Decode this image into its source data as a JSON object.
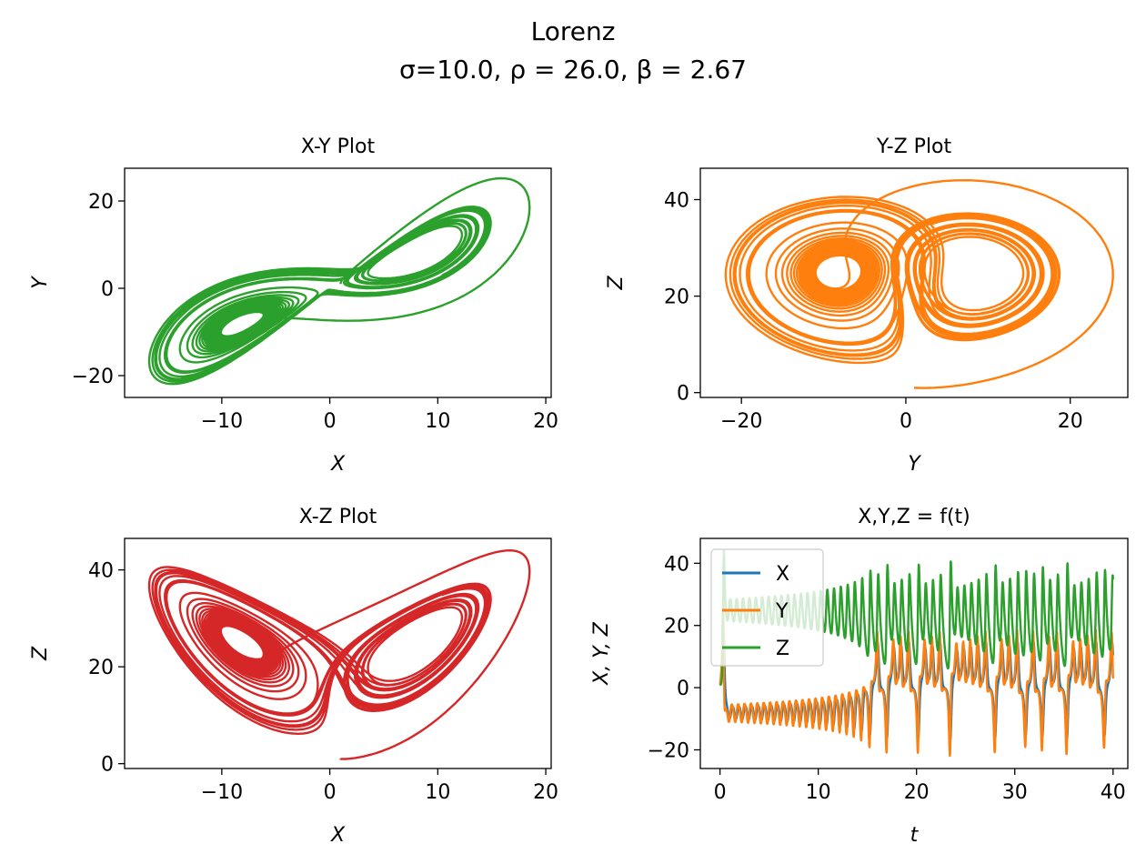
{
  "figure": {
    "suptitle_line1": "Lorenz",
    "suptitle_line2": "σ=10.0, ρ = 26.0, β = 2.67"
  },
  "chart_data": [
    {
      "type": "line",
      "title": "X-Y Plot",
      "xlabel": "X",
      "ylabel": "Y",
      "xlim": [
        -19,
        20.5
      ],
      "ylim": [
        -25,
        27.5
      ],
      "xticks": [
        -10,
        0,
        10,
        20
      ],
      "yticks": [
        -20,
        0,
        20
      ],
      "xtick_labels": [
        "−10",
        "0",
        "10",
        "20"
      ],
      "ytick_labels": [
        "−20",
        "0",
        "20"
      ],
      "grid": false,
      "series": [
        {
          "x_var": "X",
          "y_var": "Y",
          "color": "#2ca02c",
          "values_source": "Lorenz trajectory (σ=10.0, ρ=26.0, β=2.67), t from 0 to 40"
        }
      ]
    },
    {
      "type": "line",
      "title": "Y-Z Plot",
      "xlabel": "Y",
      "ylabel": "Z",
      "xlim": [
        -25,
        27
      ],
      "ylim": [
        -1,
        46.5
      ],
      "xticks": [
        -20,
        0,
        20
      ],
      "yticks": [
        0,
        20,
        40
      ],
      "xtick_labels": [
        "−20",
        "0",
        "20"
      ],
      "ytick_labels": [
        "0",
        "20",
        "40"
      ],
      "grid": false,
      "series": [
        {
          "x_var": "Y",
          "y_var": "Z",
          "color": "#ff7f0e",
          "values_source": "Lorenz trajectory (σ=10.0, ρ=26.0, β=2.67), t from 0 to 40"
        }
      ]
    },
    {
      "type": "line",
      "title": "X-Z Plot",
      "xlabel": "X",
      "ylabel": "Z",
      "xlim": [
        -19,
        20.5
      ],
      "ylim": [
        -1,
        46.5
      ],
      "xticks": [
        -10,
        0,
        10,
        20
      ],
      "yticks": [
        0,
        20,
        40
      ],
      "xtick_labels": [
        "−10",
        "0",
        "10",
        "20"
      ],
      "ytick_labels": [
        "0",
        "20",
        "40"
      ],
      "grid": false,
      "series": [
        {
          "x_var": "X",
          "y_var": "Z",
          "color": "#d62728",
          "values_source": "Lorenz trajectory (σ=10.0, ρ=26.0, β=2.67), t from 0 to 40"
        }
      ]
    },
    {
      "type": "line",
      "title": "X,Y,Z = f(t)",
      "xlabel": "t",
      "ylabel": "X, Y, Z",
      "xlim": [
        -2,
        41.5
      ],
      "ylim": [
        -26,
        48
      ],
      "xticks": [
        0,
        10,
        20,
        30,
        40
      ],
      "yticks": [
        -20,
        0,
        20,
        40
      ],
      "xtick_labels": [
        "0",
        "10",
        "20",
        "30",
        "40"
      ],
      "ytick_labels": [
        "−20",
        "0",
        "20",
        "40"
      ],
      "grid": false,
      "legend": "upper-left",
      "series": [
        {
          "name": "X",
          "x_var": "t",
          "y_var": "X",
          "color": "#1f77b4"
        },
        {
          "name": "Y",
          "x_var": "t",
          "y_var": "Y",
          "color": "#ff7f0e"
        },
        {
          "name": "Z",
          "x_var": "t",
          "y_var": "Z",
          "color": "#2ca02c"
        }
      ]
    }
  ]
}
